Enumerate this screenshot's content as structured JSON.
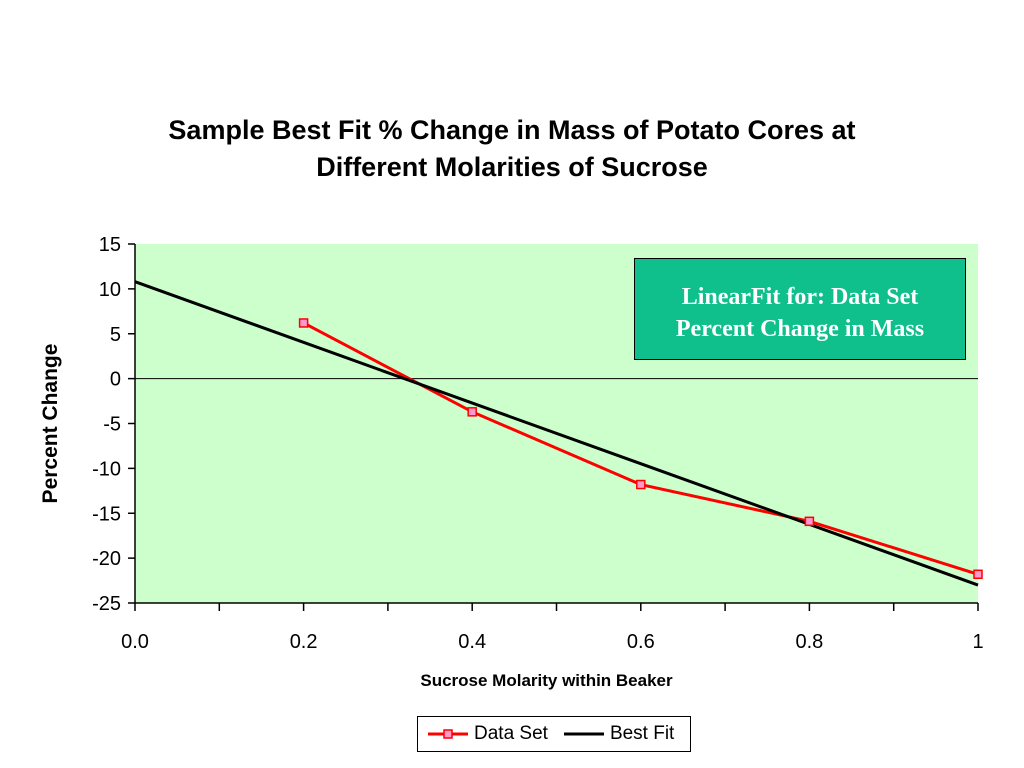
{
  "chart_data": {
    "type": "line",
    "title_lines": [
      "Sample Best Fit % Change in Mass of Potato Cores at",
      "Different Molarities of Sucrose"
    ],
    "xlabel": "Sucrose Molarity within Beaker",
    "ylabel": "Percent Change",
    "xlim": [
      0,
      1
    ],
    "ylim": [
      -25,
      15
    ],
    "x_ticks": [
      0,
      0.2,
      0.4,
      0.6,
      0.8,
      1
    ],
    "x_tick_labels": [
      "0.0",
      "0.2",
      "0.4",
      "0.6",
      "0.8",
      "1"
    ],
    "y_ticks": [
      15,
      10,
      5,
      0,
      -5,
      -10,
      -15,
      -20,
      -25
    ],
    "y_tick_labels": [
      "15",
      "10",
      "5",
      "0",
      "-5",
      "-10",
      "-15",
      "-20",
      "-25"
    ],
    "plot_background": "#ccffcc",
    "series": [
      {
        "name": "Data Set",
        "color": "#ff0000",
        "marker": "square",
        "marker_fill": "#ff99cc",
        "x": [
          0.2,
          0.4,
          0.6,
          0.8,
          1.0
        ],
        "y": [
          6.2,
          -3.7,
          -11.8,
          -15.9,
          -21.8
        ]
      },
      {
        "name": "Best Fit",
        "color": "#000000",
        "x": [
          0.0,
          1.0
        ],
        "y": [
          10.8,
          -23.0
        ]
      }
    ],
    "annotation": {
      "lines": [
        "LinearFit for: Data Set",
        "Percent Change in Mass"
      ],
      "background": "#0fbf8c",
      "text_color": "#ffffff",
      "placement": "top-right"
    },
    "legend": {
      "placement": "bottom-center",
      "entries": [
        "Data Set",
        "Best Fit"
      ]
    }
  }
}
